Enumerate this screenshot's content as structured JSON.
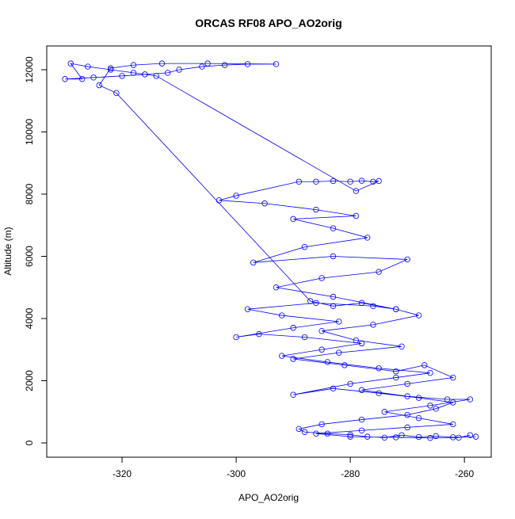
{
  "chart_data": {
    "type": "line",
    "title": "ORCAS RF08 APO_AO2orig",
    "xlabel": "APO_AO2orig",
    "ylabel": "Altitude (m)",
    "xlim": [
      -333.2,
      -255.3
    ],
    "ylim": [
      -459,
      12764
    ],
    "xticks": [
      -320,
      -300,
      -280,
      -260
    ],
    "yticks": [
      0,
      2000,
      4000,
      6000,
      8000,
      10000,
      12000
    ],
    "color": "#0000ff",
    "markers": true,
    "x": [
      -258,
      -262,
      -265,
      -268,
      -271,
      -274,
      -277,
      -280,
      -284,
      -288,
      -289,
      -285,
      -278,
      -270,
      -265,
      -262,
      -268,
      -275,
      -283,
      -290,
      -280,
      -272,
      -266,
      -275,
      -284,
      -292,
      -285,
      -278,
      -288,
      -296,
      -300,
      -290,
      -282,
      -292,
      -298,
      -286,
      -276,
      -272,
      -283,
      -293,
      -285,
      -275,
      -270,
      -283,
      -297,
      -288,
      -277,
      -283,
      -290,
      -279,
      -286,
      -295,
      -303,
      -300,
      -289,
      -286,
      -283,
      -280,
      -278,
      -276,
      -275,
      -279,
      -314,
      -318,
      -322,
      -326,
      -329,
      -327,
      -330,
      -325,
      -320,
      -316,
      -312,
      -310,
      -306,
      -302,
      -298,
      -293,
      -305,
      -313,
      -318,
      -322,
      -324,
      -321,
      -287,
      -283,
      -278,
      -272,
      -268,
      -276,
      -285,
      -279,
      -271,
      -282,
      -290,
      -281,
      -272,
      -267,
      -262,
      -270,
      -278,
      -270,
      -263,
      -259,
      -266,
      -274,
      -268,
      -262,
      -270,
      -278,
      -286,
      -280,
      -272,
      -266,
      -261,
      -259
    ],
    "values": [
      200,
      180,
      220,
      190,
      250,
      170,
      200,
      260,
      300,
      350,
      450,
      600,
      750,
      900,
      1100,
      1300,
      1450,
      1600,
      1750,
      1550,
      1900,
      2100,
      2250,
      2400,
      2600,
      2800,
      3000,
      3200,
      3400,
      3500,
      3400,
      3700,
      3900,
      4100,
      4300,
      4500,
      4400,
      4300,
      4700,
      5000,
      5300,
      5500,
      5900,
      6000,
      5800,
      6300,
      6600,
      6900,
      7200,
      7300,
      7500,
      7700,
      7800,
      7950,
      8400,
      8400,
      8420,
      8400,
      8430,
      8400,
      8420,
      8100,
      11800,
      11900,
      12000,
      12100,
      12200,
      11700,
      11700,
      11750,
      11800,
      11850,
      11900,
      12000,
      12100,
      12150,
      12180,
      12180,
      12200,
      12200,
      12150,
      12050,
      11500,
      11250,
      4560,
      4400,
      4500,
      4300,
      4100,
      3800,
      3600,
      3300,
      3100,
      2900,
      2700,
      2500,
      2300,
      2500,
      2100,
      1900,
      1700,
      1500,
      1400,
      1400,
      1200,
      1000,
      800,
      600,
      500,
      400,
      300,
      200,
      180,
      160,
      170,
      250
    ]
  }
}
